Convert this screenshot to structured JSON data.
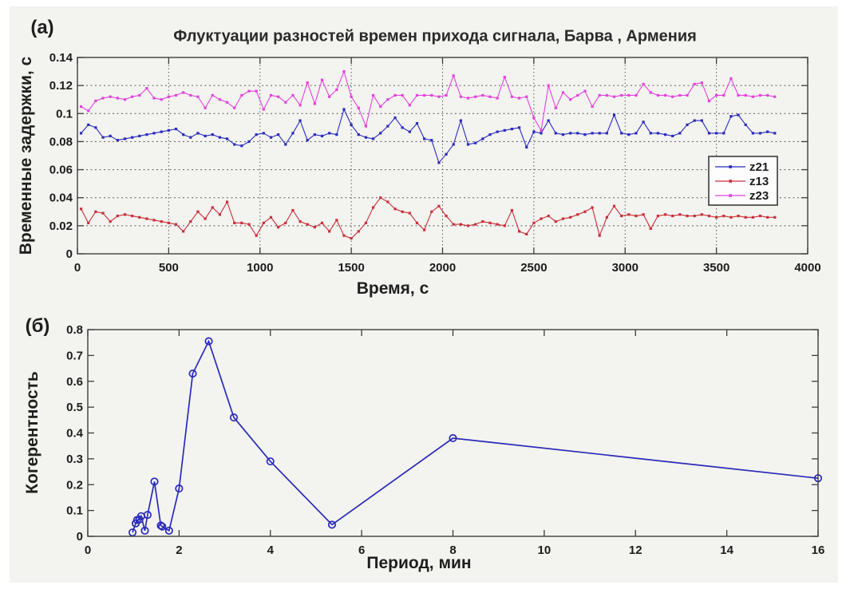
{
  "figure": {
    "background_color": "#f3f3f0",
    "panel_a_label": "(а)",
    "panel_b_label": "(б)"
  },
  "chart_data": [
    {
      "type": "line",
      "panel": "а",
      "title": "Флуктуации разностей времен прихода сигнала, Барва , Армения",
      "xlabel": "Время, с",
      "ylabel": "Временные задержки, с",
      "xlim": [
        0,
        4000
      ],
      "ylim": [
        0,
        0.14
      ],
      "xticks": [
        0,
        500,
        1000,
        1500,
        2000,
        2500,
        3000,
        3500,
        4000
      ],
      "xtick_labels": [
        "0",
        "500",
        "1000",
        "1500",
        "2000",
        "2500",
        "3000",
        "3500",
        "4000"
      ],
      "yticks": [
        0,
        0.02,
        0.04,
        0.06,
        0.08,
        0.1,
        0.12,
        0.14
      ],
      "ytick_labels": [
        "0",
        "0.02",
        "0.04",
        "0.06",
        "0.08",
        "0.1",
        "0.12",
        "0.14"
      ],
      "grid": true,
      "legend": {
        "position": "right-middle",
        "entries": [
          "z21",
          "z13",
          "z23"
        ]
      },
      "x": [
        20,
        60,
        100,
        140,
        180,
        220,
        260,
        300,
        340,
        380,
        420,
        460,
        500,
        540,
        580,
        620,
        660,
        700,
        740,
        780,
        820,
        860,
        900,
        940,
        980,
        1020,
        1060,
        1100,
        1140,
        1180,
        1220,
        1260,
        1300,
        1340,
        1380,
        1420,
        1460,
        1500,
        1540,
        1580,
        1620,
        1660,
        1700,
        1740,
        1780,
        1820,
        1860,
        1900,
        1940,
        1980,
        2020,
        2060,
        2100,
        2140,
        2180,
        2220,
        2260,
        2300,
        2340,
        2380,
        2420,
        2460,
        2500,
        2540,
        2580,
        2620,
        2660,
        2700,
        2740,
        2780,
        2820,
        2860,
        2900,
        2940,
        2980,
        3020,
        3060,
        3100,
        3140,
        3180,
        3220,
        3260,
        3300,
        3340,
        3380,
        3420,
        3460,
        3500,
        3540,
        3580,
        3620,
        3660,
        3700,
        3740,
        3780,
        3820
      ],
      "series": [
        {
          "name": "z21",
          "color": "#2b2bbd",
          "marker": "square",
          "values": [
            0.086,
            0.092,
            0.09,
            0.083,
            0.084,
            0.081,
            0.082,
            0.083,
            0.084,
            0.085,
            0.086,
            0.087,
            0.088,
            0.089,
            0.085,
            0.083,
            0.086,
            0.084,
            0.085,
            0.083,
            0.082,
            0.078,
            0.077,
            0.08,
            0.085,
            0.086,
            0.083,
            0.085,
            0.078,
            0.086,
            0.095,
            0.081,
            0.085,
            0.084,
            0.086,
            0.085,
            0.103,
            0.092,
            0.085,
            0.083,
            0.082,
            0.086,
            0.091,
            0.097,
            0.09,
            0.087,
            0.093,
            0.082,
            0.081,
            0.065,
            0.071,
            0.078,
            0.095,
            0.078,
            0.079,
            0.082,
            0.085,
            0.087,
            0.088,
            0.089,
            0.09,
            0.076,
            0.087,
            0.086,
            0.095,
            0.086,
            0.085,
            0.086,
            0.086,
            0.085,
            0.086,
            0.086,
            0.086,
            0.099,
            0.086,
            0.085,
            0.086,
            0.094,
            0.086,
            0.086,
            0.085,
            0.084,
            0.086,
            0.092,
            0.095,
            0.095,
            0.086,
            0.086,
            0.086,
            0.098,
            0.099,
            0.092,
            0.086,
            0.086,
            0.087,
            0.086
          ]
        },
        {
          "name": "z13",
          "color": "#c8303a",
          "marker": "square",
          "values": [
            0.032,
            0.022,
            0.03,
            0.029,
            0.023,
            0.027,
            0.028,
            0.027,
            0.026,
            0.025,
            0.024,
            0.023,
            0.022,
            0.021,
            0.016,
            0.023,
            0.03,
            0.025,
            0.033,
            0.028,
            0.037,
            0.022,
            0.022,
            0.021,
            0.013,
            0.022,
            0.026,
            0.019,
            0.022,
            0.031,
            0.023,
            0.021,
            0.019,
            0.022,
            0.016,
            0.024,
            0.013,
            0.011,
            0.016,
            0.022,
            0.033,
            0.04,
            0.037,
            0.032,
            0.03,
            0.029,
            0.022,
            0.017,
            0.03,
            0.034,
            0.027,
            0.021,
            0.021,
            0.02,
            0.021,
            0.023,
            0.022,
            0.021,
            0.02,
            0.031,
            0.016,
            0.014,
            0.022,
            0.025,
            0.027,
            0.023,
            0.025,
            0.026,
            0.028,
            0.03,
            0.033,
            0.013,
            0.026,
            0.034,
            0.027,
            0.028,
            0.027,
            0.028,
            0.018,
            0.027,
            0.028,
            0.027,
            0.028,
            0.027,
            0.027,
            0.028,
            0.027,
            0.026,
            0.027,
            0.026,
            0.027,
            0.026,
            0.026,
            0.027,
            0.026,
            0.026
          ]
        },
        {
          "name": "z23",
          "color": "#e243dc",
          "marker": "square",
          "values": [
            0.105,
            0.102,
            0.109,
            0.111,
            0.112,
            0.111,
            0.11,
            0.112,
            0.113,
            0.118,
            0.111,
            0.11,
            0.112,
            0.113,
            0.115,
            0.113,
            0.112,
            0.104,
            0.113,
            0.11,
            0.108,
            0.104,
            0.113,
            0.116,
            0.116,
            0.103,
            0.113,
            0.112,
            0.108,
            0.113,
            0.106,
            0.122,
            0.107,
            0.124,
            0.112,
            0.117,
            0.13,
            0.112,
            0.104,
            0.091,
            0.113,
            0.105,
            0.11,
            0.113,
            0.113,
            0.106,
            0.113,
            0.113,
            0.113,
            0.112,
            0.113,
            0.127,
            0.112,
            0.111,
            0.112,
            0.113,
            0.112,
            0.111,
            0.126,
            0.112,
            0.111,
            0.112,
            0.097,
            0.088,
            0.12,
            0.104,
            0.115,
            0.11,
            0.113,
            0.116,
            0.105,
            0.113,
            0.113,
            0.112,
            0.113,
            0.113,
            0.113,
            0.121,
            0.115,
            0.113,
            0.113,
            0.112,
            0.113,
            0.113,
            0.121,
            0.122,
            0.109,
            0.113,
            0.113,
            0.125,
            0.113,
            0.113,
            0.112,
            0.113,
            0.113,
            0.112
          ]
        }
      ]
    },
    {
      "type": "line",
      "panel": "б",
      "title": "",
      "xlabel": "Период, мин",
      "ylabel": "Когерентность",
      "xlim": [
        0,
        16
      ],
      "ylim": [
        0,
        0.8
      ],
      "xticks": [
        0,
        2,
        4,
        6,
        8,
        10,
        12,
        14,
        16
      ],
      "xtick_labels": [
        "0",
        "2",
        "4",
        "6",
        "8",
        "10",
        "12",
        "14",
        "16"
      ],
      "yticks": [
        0,
        0.1,
        0.2,
        0.3,
        0.4,
        0.5,
        0.6,
        0.7,
        0.8
      ],
      "ytick_labels": [
        "0",
        "0.1",
        "0.2",
        "0.3",
        "0.4",
        "0.5",
        "0.6",
        "0.7",
        "0.8"
      ],
      "grid": false,
      "series": [
        {
          "name": "когерентность",
          "color": "#2a2ab8",
          "marker": "open-circle",
          "x": [
            0.98,
            1.05,
            1.08,
            1.13,
            1.17,
            1.25,
            1.31,
            1.46,
            1.6,
            1.63,
            1.78,
            2.0,
            2.3,
            2.65,
            3.2,
            4.0,
            5.35,
            8.0,
            16.0
          ],
          "values": [
            0.015,
            0.05,
            0.063,
            0.065,
            0.078,
            0.022,
            0.083,
            0.212,
            0.042,
            0.038,
            0.022,
            0.185,
            0.63,
            0.755,
            0.46,
            0.29,
            0.045,
            0.38,
            0.225
          ]
        }
      ]
    }
  ],
  "style": {
    "axis_color": "#3d3d3d",
    "grid_color": "#5a5a5a",
    "tick_text_color": "#1c1c1c",
    "legend_background": "#fdfdfd",
    "legend_border": "#2e2e2e"
  }
}
